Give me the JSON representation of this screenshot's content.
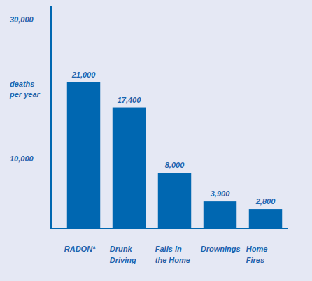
{
  "chart_data": {
    "type": "bar",
    "y_label": "deaths per year",
    "categories": [
      "RADON*",
      "Drunk Driving",
      "Falls in the Home",
      "Drownings",
      "Home Fires"
    ],
    "values": [
      21000,
      17400,
      8000,
      3900,
      2800
    ],
    "value_labels": [
      "21,000",
      "17,400",
      "8,000",
      "3,900",
      "2,800"
    ],
    "color": "#0067b1",
    "data_labels": true,
    "grid": false,
    "ylim": [
      0,
      32000
    ],
    "yticks": [
      {
        "value": 10000,
        "label": "10,000"
      },
      {
        "value": 30000,
        "label": "30,000"
      }
    ]
  }
}
